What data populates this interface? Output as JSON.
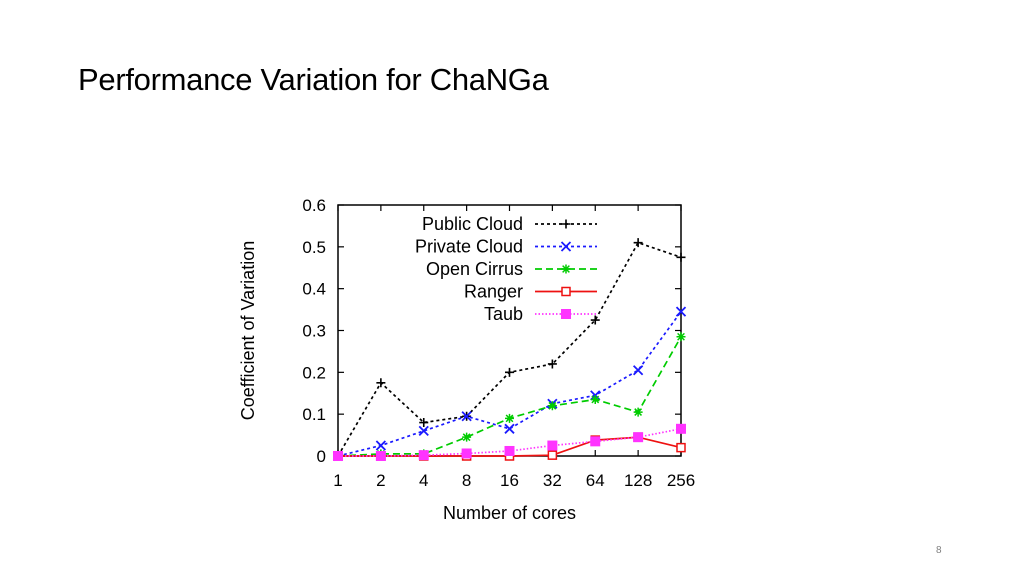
{
  "slide": {
    "title": "Performance Variation for ChaNGa",
    "page_number": "8"
  },
  "chart_data": {
    "type": "line",
    "title": "",
    "xlabel": "Number of cores",
    "ylabel": "Coefficient of Variation",
    "categories": [
      "1",
      "2",
      "4",
      "8",
      "16",
      "32",
      "64",
      "128",
      "256"
    ],
    "y_ticks": [
      "0",
      "0.1",
      "0.2",
      "0.3",
      "0.4",
      "0.5",
      "0.6"
    ],
    "ylim": [
      0,
      0.6
    ],
    "grid": false,
    "legend_position": "top-right",
    "series": [
      {
        "name": "Public Cloud",
        "color": "#000000",
        "dash": "dotted",
        "marker": "plus",
        "values": [
          0.0,
          0.175,
          0.08,
          0.095,
          0.2,
          0.22,
          0.325,
          0.51,
          0.475
        ]
      },
      {
        "name": "Private Cloud",
        "color": "#1a1aff",
        "dash": "dotted",
        "marker": "cross",
        "values": [
          0.0,
          0.025,
          0.06,
          0.095,
          0.065,
          0.125,
          0.145,
          0.205,
          0.345
        ]
      },
      {
        "name": "Open Cirrus",
        "color": "#00cc00",
        "dash": "dashed",
        "marker": "star",
        "values": [
          0.0,
          0.005,
          0.005,
          0.045,
          0.09,
          0.12,
          0.135,
          0.105,
          0.285
        ]
      },
      {
        "name": "Ranger",
        "color": "#ee1111",
        "dash": "solid",
        "marker": "square-open",
        "values": [
          0.0,
          0.0,
          0.0,
          0.0,
          0.0,
          0.002,
          0.038,
          0.045,
          0.02
        ]
      },
      {
        "name": "Taub",
        "color": "#ff33ff",
        "dash": "fine-dotted",
        "marker": "square-filled",
        "values": [
          0.0,
          0.0,
          0.002,
          0.006,
          0.012,
          0.025,
          0.035,
          0.045,
          0.065
        ]
      }
    ]
  }
}
